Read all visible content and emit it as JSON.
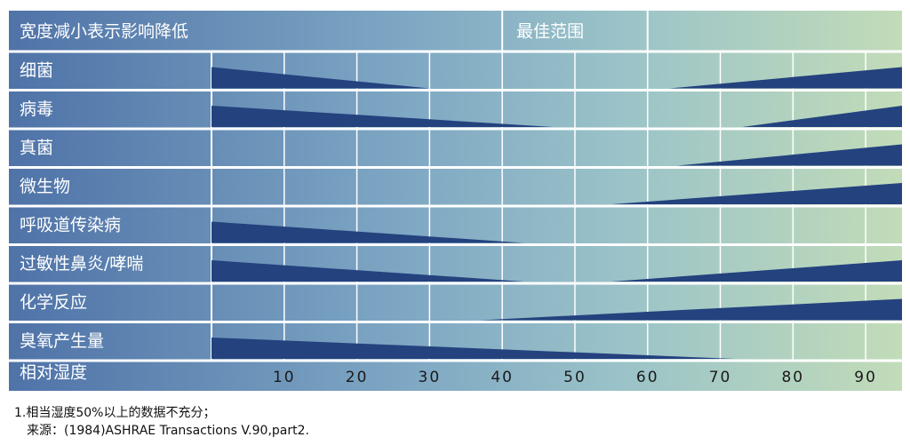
{
  "chart_data": {
    "type": "wedge",
    "header_left": "宽度减小表示影响降低",
    "header_right": "最佳范围",
    "optimal_range": [
      40,
      60
    ],
    "x_label": "相对湿度",
    "xlim": [
      0,
      95
    ],
    "xticks": [
      10,
      20,
      30,
      40,
      50,
      60,
      70,
      80,
      90
    ],
    "categories": [
      "细菌",
      "病毒",
      "真菌",
      "微生物",
      "呼吸道传染病",
      "过敏性鼻炎/哮喘",
      "化学反应",
      "臭氧产生量"
    ],
    "low_end": [
      30,
      47,
      null,
      null,
      43,
      43,
      null,
      72
    ],
    "high_start": [
      63,
      73,
      64,
      55,
      null,
      55,
      37,
      null
    ],
    "color": "#24427e",
    "notes": [
      "1.相当湿度50%以上的数据不充分；",
      "来源：(1984)ASHRAE Transactions V.90,part2."
    ]
  }
}
